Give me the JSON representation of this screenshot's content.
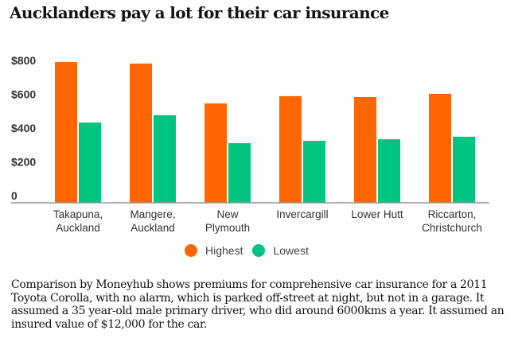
{
  "chart_data": {
    "type": "bar",
    "title": "Aucklanders pay a lot for their car insurance",
    "xlabel": "",
    "ylabel": "",
    "ylim": [
      0,
      800
    ],
    "yticks": [
      {
        "value": 0,
        "label": "0"
      },
      {
        "value": 200,
        "label": "$200"
      },
      {
        "value": 400,
        "label": "$400"
      },
      {
        "value": 600,
        "label": "$600"
      },
      {
        "value": 800,
        "label": "$800"
      }
    ],
    "grid": false,
    "legend_position": "bottom",
    "categories": [
      [
        "Takapuna,",
        "Auckland"
      ],
      [
        "Mangere,",
        "Auckland"
      ],
      [
        "New",
        "Plymouth"
      ],
      [
        "Invercargill"
      ],
      [
        "Lower Hutt"
      ],
      [
        "Riccarton,",
        "Christchurch"
      ]
    ],
    "series": [
      {
        "name": "Highest",
        "color": "#ff6600",
        "values": [
          833,
          824,
          588,
          631,
          626,
          645
        ]
      },
      {
        "name": "Lowest",
        "color": "#00c47f",
        "values": [
          475,
          518,
          353,
          367,
          376,
          391
        ]
      }
    ]
  },
  "caption": "Comparison by Moneyhub shows premiums for comprehensive car insurance for a 2011 Toyota Corolla, with no alarm, which is parked off-street at night, but not in a garage. It assumed a 35 year-old male primary driver, who did around 6000kms a year. It assumed an insured value of $12,000 for the car.",
  "colors": {
    "axis": "#999999",
    "text": "#333333"
  }
}
